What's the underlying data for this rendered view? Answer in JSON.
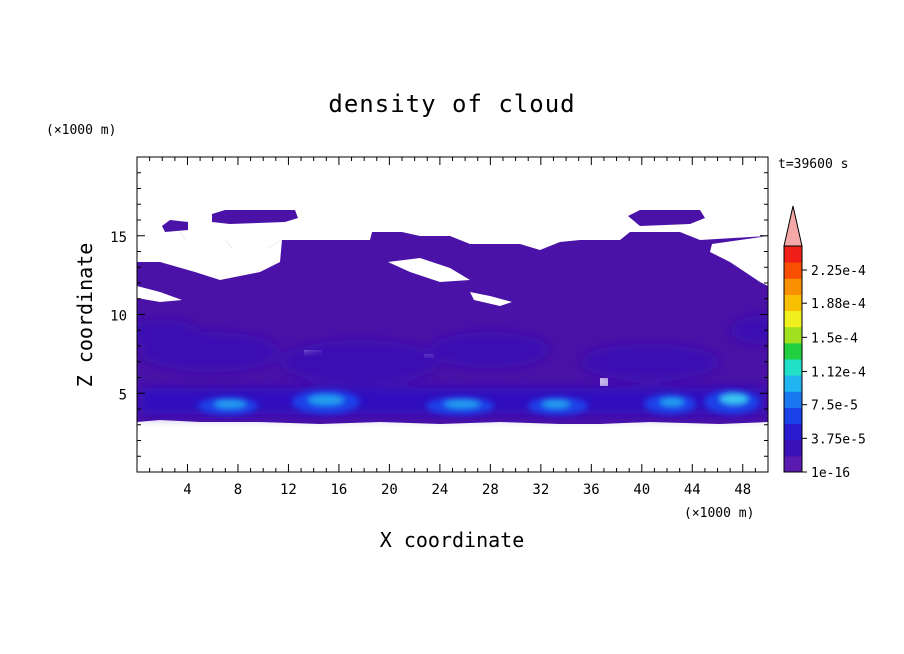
{
  "chart_data": {
    "type": "heatmap",
    "title": "density of cloud",
    "xlabel": "X coordinate",
    "ylabel": "Z coordinate",
    "x_unit": "(×1000 m)",
    "y_unit": "(×1000 m)",
    "time_label": "t=39600 s",
    "xlim": [
      0,
      50
    ],
    "ylim": [
      0,
      20
    ],
    "x_ticks": [
      4,
      8,
      12,
      16,
      20,
      24,
      28,
      32,
      36,
      40,
      44,
      48
    ],
    "y_ticks": [
      5,
      10,
      15
    ],
    "x_tick_labels": [
      "4",
      "8",
      "12",
      "16",
      "20",
      "24",
      "28",
      "32",
      "36",
      "40",
      "44",
      "48"
    ],
    "y_tick_labels": [
      "5",
      "10",
      "15"
    ],
    "colorbar": {
      "labels": [
        "2.25e-4",
        "1.88e-4",
        "1.5e-4",
        "1.12e-4",
        "7.5e-5",
        "3.75e-5",
        "1e-16"
      ],
      "label_values": [
        0.000225,
        0.000188,
        0.00015,
        0.000112,
        7.5e-05,
        3.75e-05,
        1e-16
      ],
      "colors": [
        "#5a1ab0",
        "#3a10b8",
        "#2a1ad0",
        "#1a40e8",
        "#1a78f0",
        "#20b4f0",
        "#20e0c8",
        "#20d040",
        "#a0e020",
        "#f0f020",
        "#f8c000",
        "#f89000",
        "#f85000",
        "#f02018"
      ],
      "overflow_color": "#f4a8a8"
    },
    "regions": {
      "cloud_base_z": 3.5,
      "cloud_top_z": 16.5,
      "dense_cores_x": [
        6.5,
        14.5,
        26.0,
        32.5,
        42.0,
        46.5
      ],
      "dense_cores_z": 4.3
    }
  }
}
